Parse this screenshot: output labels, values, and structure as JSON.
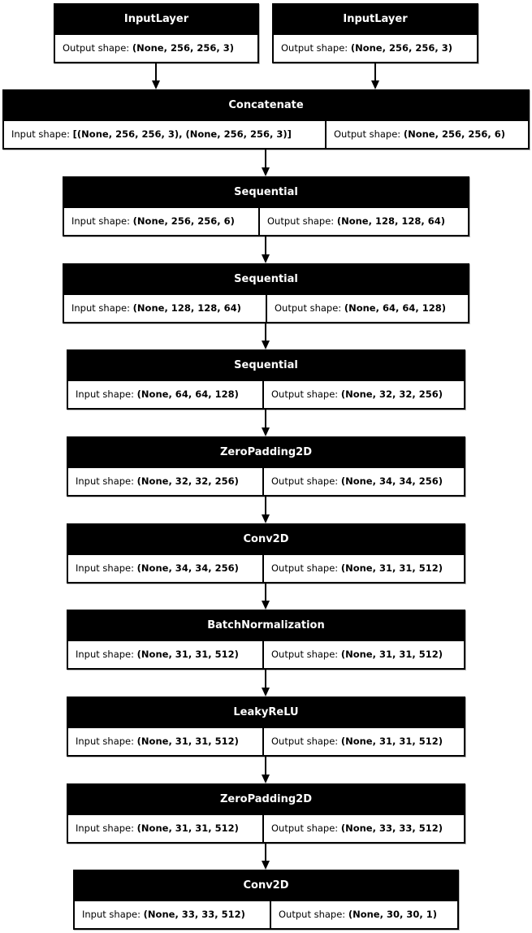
{
  "diagram": {
    "nodes": [
      {
        "id": "input-1",
        "title": "InputLayer",
        "cells": [
          {
            "label": "Output shape: ",
            "value": "(None, 256, 256, 3)"
          }
        ]
      },
      {
        "id": "input-2",
        "title": "InputLayer",
        "cells": [
          {
            "label": "Output shape: ",
            "value": "(None, 256, 256, 3)"
          }
        ]
      },
      {
        "id": "concatenate",
        "title": "Concatenate",
        "cells": [
          {
            "label": "Input shape: ",
            "value": "[(None, 256, 256, 3), (None, 256, 256, 3)]"
          },
          {
            "label": "Output shape: ",
            "value": "(None, 256, 256, 6)"
          }
        ]
      },
      {
        "id": "sequential-1",
        "title": "Sequential",
        "cells": [
          {
            "label": "Input shape: ",
            "value": "(None, 256, 256, 6)"
          },
          {
            "label": "Output shape: ",
            "value": "(None, 128, 128, 64)"
          }
        ]
      },
      {
        "id": "sequential-2",
        "title": "Sequential",
        "cells": [
          {
            "label": "Input shape: ",
            "value": "(None, 128, 128, 64)"
          },
          {
            "label": "Output shape: ",
            "value": "(None, 64, 64, 128)"
          }
        ]
      },
      {
        "id": "sequential-3",
        "title": "Sequential",
        "cells": [
          {
            "label": "Input shape: ",
            "value": "(None, 64, 64, 128)"
          },
          {
            "label": "Output shape: ",
            "value": "(None, 32, 32, 256)"
          }
        ]
      },
      {
        "id": "zeropadding2d-1",
        "title": "ZeroPadding2D",
        "cells": [
          {
            "label": "Input shape: ",
            "value": "(None, 32, 32, 256)"
          },
          {
            "label": "Output shape: ",
            "value": "(None, 34, 34, 256)"
          }
        ]
      },
      {
        "id": "conv2d-1",
        "title": "Conv2D",
        "cells": [
          {
            "label": "Input shape: ",
            "value": "(None, 34, 34, 256)"
          },
          {
            "label": "Output shape: ",
            "value": "(None, 31, 31, 512)"
          }
        ]
      },
      {
        "id": "batchnormalization",
        "title": "BatchNormalization",
        "cells": [
          {
            "label": "Input shape: ",
            "value": "(None, 31, 31, 512)"
          },
          {
            "label": "Output shape: ",
            "value": "(None, 31, 31, 512)"
          }
        ]
      },
      {
        "id": "leakyrelu",
        "title": "LeakyReLU",
        "cells": [
          {
            "label": "Input shape: ",
            "value": "(None, 31, 31, 512)"
          },
          {
            "label": "Output shape: ",
            "value": "(None, 31, 31, 512)"
          }
        ]
      },
      {
        "id": "zeropadding2d-2",
        "title": "ZeroPadding2D",
        "cells": [
          {
            "label": "Input shape: ",
            "value": "(None, 31, 31, 512)"
          },
          {
            "label": "Output shape: ",
            "value": "(None, 33, 33, 512)"
          }
        ]
      },
      {
        "id": "conv2d-2",
        "title": "Conv2D",
        "cells": [
          {
            "label": "Input shape: ",
            "value": "(None, 33, 33, 512)"
          },
          {
            "label": "Output shape: ",
            "value": "(None, 30, 30, 1)"
          }
        ]
      }
    ],
    "edges": [
      [
        "input-1",
        "concatenate"
      ],
      [
        "input-2",
        "concatenate"
      ],
      [
        "concatenate",
        "sequential-1"
      ],
      [
        "sequential-1",
        "sequential-2"
      ],
      [
        "sequential-2",
        "sequential-3"
      ],
      [
        "sequential-3",
        "zeropadding2d-1"
      ],
      [
        "zeropadding2d-1",
        "conv2d-1"
      ],
      [
        "conv2d-1",
        "batchnormalization"
      ],
      [
        "batchnormalization",
        "leakyrelu"
      ],
      [
        "leakyrelu",
        "zeropadding2d-2"
      ],
      [
        "zeropadding2d-2",
        "conv2d-2"
      ]
    ]
  }
}
